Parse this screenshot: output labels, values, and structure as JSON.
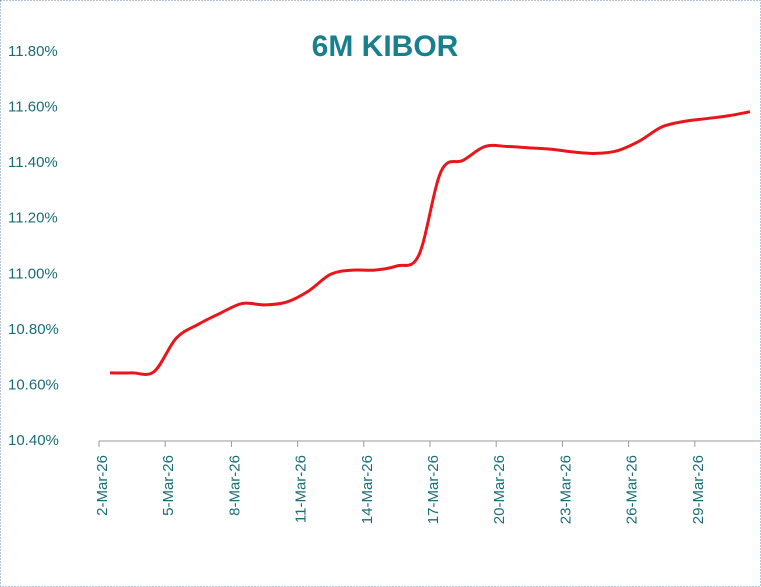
{
  "chart_data": {
    "type": "line",
    "title": "6M KIBOR",
    "categories": [
      "2-Mar-26",
      null,
      null,
      "5-Mar-26",
      null,
      null,
      "8-Mar-26",
      null,
      null,
      "11-Mar-26",
      null,
      null,
      "14-Mar-26",
      null,
      null,
      "17-Mar-26",
      null,
      null,
      "20-Mar-26",
      null,
      null,
      "23-Mar-26",
      null,
      null,
      "26-Mar-26",
      null,
      null,
      "29-Mar-26",
      null,
      null
    ],
    "series": [
      {
        "name": "6M KIBOR",
        "color": "#e8161b",
        "values": [
          10.645,
          10.645,
          10.65,
          10.77,
          10.82,
          10.86,
          10.895,
          10.89,
          10.9,
          10.94,
          11.0,
          11.015,
          11.015,
          11.03,
          11.07,
          11.37,
          11.41,
          11.46,
          11.46,
          11.455,
          11.45,
          11.44,
          11.435,
          11.445,
          11.48,
          11.53,
          11.55,
          11.56,
          11.57,
          11.585
        ]
      }
    ],
    "ylim": [
      10.4,
      11.8
    ],
    "yticks": [
      {
        "value": 10.4,
        "label": "10.40%"
      },
      {
        "value": 10.6,
        "label": "10.60%"
      },
      {
        "value": 10.8,
        "label": "10.80%"
      },
      {
        "value": 11.0,
        "label": "11.00%"
      },
      {
        "value": 11.2,
        "label": "11.20%"
      },
      {
        "value": 11.4,
        "label": "11.40%"
      },
      {
        "value": 11.6,
        "label": "11.60%"
      },
      {
        "value": 11.8,
        "label": "11.80%"
      }
    ],
    "grid": false
  }
}
